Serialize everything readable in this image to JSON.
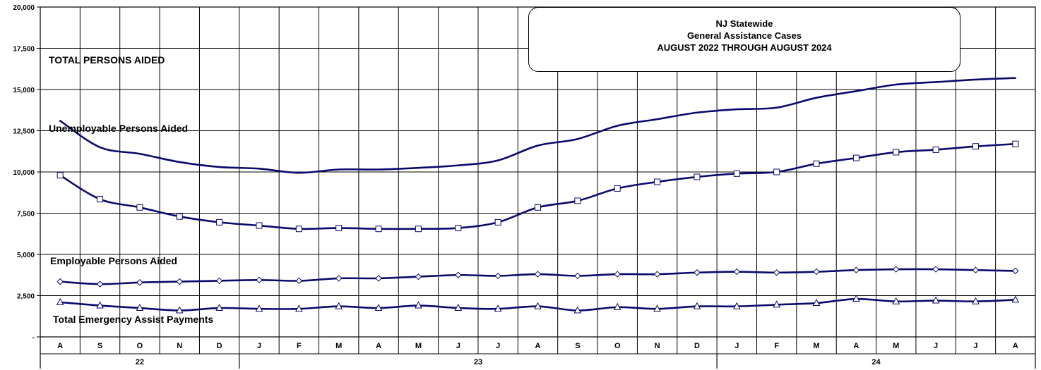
{
  "chart_data": {
    "type": "line",
    "title": [
      "NJ Statewide",
      "General Assistance Cases",
      "AUGUST 2022 THROUGH AUGUST 2024"
    ],
    "xlabel": "",
    "ylabel": "",
    "ylim": [
      0,
      20000
    ],
    "yticks": [
      0,
      2500,
      5000,
      7500,
      10000,
      12500,
      15000,
      17500,
      20000
    ],
    "ytick_labels": [
      "-",
      "2,500",
      "5,000",
      "7,500",
      "10,000",
      "12,500",
      "15,000",
      "17,500",
      "20,000"
    ],
    "grid": true,
    "categories": [
      "A",
      "S",
      "O",
      "N",
      "D",
      "J",
      "F",
      "M",
      "A",
      "M",
      "J",
      "J",
      "A",
      "S",
      "O",
      "N",
      "D",
      "J",
      "F",
      "M",
      "A",
      "M",
      "J",
      "J",
      "A"
    ],
    "year_groups": [
      {
        "label": "22",
        "start": 0,
        "end": 4
      },
      {
        "label": "23",
        "start": 5,
        "end": 16
      },
      {
        "label": "24",
        "start": 17,
        "end": 24
      }
    ],
    "series": [
      {
        "name": "TOTAL PERSONS AIDED",
        "color": "#0a0a6e",
        "marker": "none",
        "values": [
          13100,
          11500,
          11100,
          10600,
          10300,
          10200,
          9950,
          10150,
          10150,
          10250,
          10400,
          10700,
          11600,
          12000,
          12800,
          13200,
          13600,
          13800,
          13900,
          14500,
          14900,
          15300,
          15450,
          15600,
          15700
        ]
      },
      {
        "name": "Unemployable Persons Aided",
        "color": "#0a0a6e",
        "marker": "square",
        "values": [
          9800,
          8350,
          7850,
          7300,
          6950,
          6750,
          6550,
          6600,
          6550,
          6550,
          6600,
          6950,
          7850,
          8250,
          9000,
          9400,
          9700,
          9900,
          10000,
          10500,
          10850,
          11200,
          11350,
          11550,
          11700
        ]
      },
      {
        "name": "Employable Persons Aided",
        "color": "#0a0a6e",
        "marker": "diamond",
        "values": [
          3350,
          3200,
          3300,
          3350,
          3400,
          3450,
          3400,
          3550,
          3550,
          3650,
          3750,
          3700,
          3800,
          3700,
          3800,
          3800,
          3900,
          3950,
          3900,
          3950,
          4050,
          4100,
          4100,
          4050,
          4000
        ]
      },
      {
        "name": "Total Emergency Assist Payments",
        "color": "#0a0a6e",
        "marker": "triangle",
        "values": [
          2100,
          1900,
          1750,
          1600,
          1750,
          1700,
          1700,
          1850,
          1750,
          1900,
          1750,
          1700,
          1850,
          1600,
          1800,
          1700,
          1850,
          1850,
          1950,
          2050,
          2300,
          2150,
          2200,
          2150,
          2250
        ]
      }
    ]
  }
}
